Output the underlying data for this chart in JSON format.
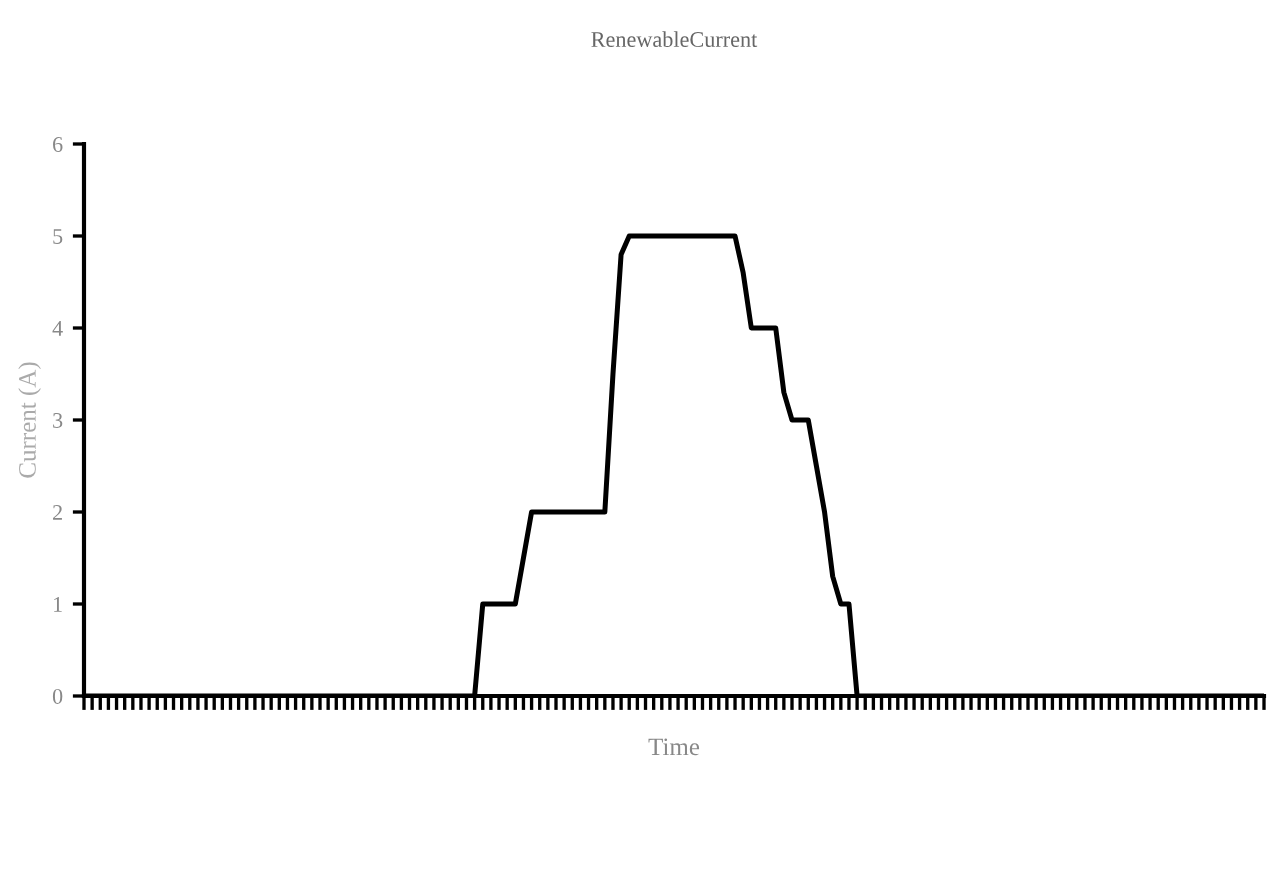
{
  "chart_data": {
    "type": "line",
    "title": "RenewableCurrent",
    "xlabel": "Time",
    "ylabel": "Current (A)",
    "categories": [
      null,
      null,
      null,
      null,
      null,
      null,
      null,
      null,
      null,
      null,
      null,
      null,
      null,
      null,
      null,
      null,
      null,
      null,
      null,
      null,
      null,
      null,
      null,
      null,
      null,
      null,
      null,
      null,
      null,
      null,
      null,
      null,
      null,
      null,
      null,
      null,
      null,
      null,
      null,
      null,
      null,
      null,
      null,
      null,
      null,
      null,
      null,
      null,
      null,
      null,
      null,
      null,
      null,
      null,
      null,
      null,
      null,
      null,
      null,
      null,
      null,
      null,
      null,
      null,
      null,
      null,
      null,
      null,
      null,
      null,
      null,
      null,
      null,
      null,
      null,
      null,
      null,
      null,
      null,
      null,
      null,
      null,
      null,
      null,
      null,
      null,
      null,
      null,
      null,
      null,
      null,
      null,
      null,
      null,
      null,
      null,
      null,
      null,
      null,
      null,
      null,
      null,
      null,
      null,
      null,
      null,
      null,
      null,
      null,
      null,
      null,
      null,
      null,
      null,
      null,
      null,
      null,
      null,
      null,
      null,
      null,
      null,
      null,
      null,
      null,
      null,
      null,
      null,
      null,
      null,
      null,
      null,
      null,
      null,
      null,
      null,
      null,
      null,
      null,
      null,
      null,
      null,
      null,
      null,
      null,
      null
    ],
    "series": [
      {
        "color": "#000000",
        "values": [
          0,
          0,
          0,
          0,
          0,
          0,
          0,
          0,
          0,
          0,
          0,
          0,
          0,
          0,
          0,
          0,
          0,
          0,
          0,
          0,
          0,
          0,
          0,
          0,
          0,
          0,
          0,
          0,
          0,
          0,
          0,
          0,
          0,
          0,
          0,
          0,
          0,
          0,
          0,
          0,
          0,
          0,
          0,
          0,
          0,
          0,
          0,
          0,
          0,
          1,
          1,
          1,
          1,
          1,
          1.5,
          2,
          2,
          2,
          2,
          2,
          2,
          2,
          2,
          2,
          2,
          3.5,
          4.8,
          5,
          5,
          5,
          5,
          5,
          5,
          5,
          5,
          5,
          5,
          5,
          5,
          5,
          5,
          4.6,
          4,
          4,
          4,
          4,
          3.3,
          3,
          3,
          3,
          2.5,
          2,
          1.3,
          1,
          1,
          0,
          0,
          0,
          0,
          0,
          0,
          0,
          0,
          0,
          0,
          0,
          0,
          0,
          0,
          0,
          0,
          0,
          0,
          0,
          0,
          0,
          0,
          0,
          0,
          0,
          0,
          0,
          0,
          0,
          0,
          0,
          0,
          0,
          0,
          0,
          0,
          0,
          0,
          0,
          0,
          0,
          0,
          0,
          0,
          0,
          0,
          0,
          0,
          0,
          0,
          0
        ]
      }
    ],
    "ylim": [
      0,
      6
    ],
    "yticks": [
      0,
      1,
      2,
      3,
      4,
      5,
      6
    ],
    "tick_labels": "y",
    "grid": false,
    "legend": false,
    "marker": "none",
    "line_style": "solid"
  }
}
